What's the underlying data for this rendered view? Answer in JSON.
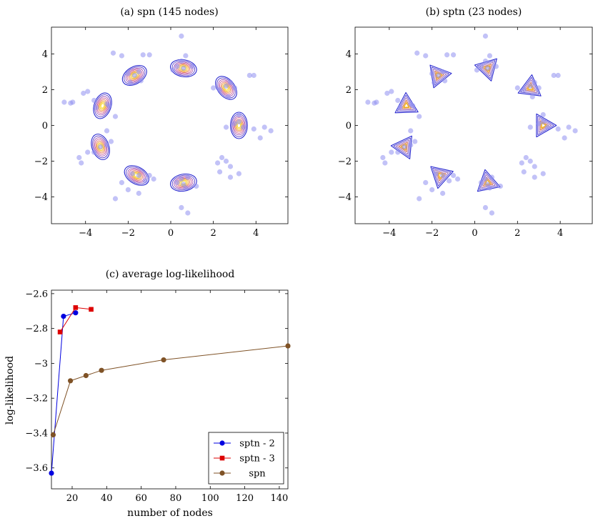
{
  "chart_data": [
    {
      "type": "scatter",
      "title": "(a) spn (145 nodes)",
      "xlabel": "",
      "ylabel": "",
      "xlim": [
        -5.6,
        5.5
      ],
      "ylim": [
        -5.5,
        5.5
      ],
      "xticks": [
        -4,
        -2,
        0,
        2,
        4
      ],
      "yticks": [
        -4,
        -2,
        0,
        2,
        4
      ],
      "xtick_labels": [
        "−4",
        "−2",
        "0",
        "2",
        "4"
      ],
      "ytick_labels": [
        "−4",
        "−2",
        "0",
        "2",
        "4"
      ],
      "grid": false,
      "overlay": "density contours (blue/purple/orange/yellow) around 8 clusters",
      "colors": {
        "points": "#8f8ff0",
        "contour_outer": "#2323d0",
        "contour_mid": "#b03090",
        "contour_inner": "#f0c020"
      },
      "points": [
        [
          -5.0,
          1.3
        ],
        [
          -4.7,
          1.25
        ],
        [
          -4.6,
          1.3
        ],
        [
          -4.1,
          1.8
        ],
        [
          -3.9,
          1.9
        ],
        [
          -3.6,
          1.4
        ],
        [
          -3.5,
          1.0
        ],
        [
          -3.0,
          1.2
        ],
        [
          -2.9,
          1.1
        ],
        [
          -2.6,
          0.5
        ],
        [
          -4.3,
          -1.8
        ],
        [
          -4.2,
          -2.1
        ],
        [
          -3.9,
          -1.5
        ],
        [
          -3.6,
          -1.5
        ],
        [
          -3.3,
          -1.2
        ],
        [
          -3.0,
          -1.1
        ],
        [
          -2.8,
          -0.9
        ],
        [
          -3.0,
          -0.3
        ],
        [
          -2.7,
          4.05
        ],
        [
          -2.3,
          3.9
        ],
        [
          -2.0,
          2.9
        ],
        [
          -1.7,
          2.8
        ],
        [
          -1.5,
          3.0
        ],
        [
          -1.3,
          3.95
        ],
        [
          -1.0,
          3.95
        ],
        [
          -1.9,
          2.4
        ],
        [
          -1.4,
          2.5
        ],
        [
          0.1,
          3.1
        ],
        [
          0.3,
          3.3
        ],
        [
          0.5,
          3.6
        ],
        [
          0.6,
          3.2
        ],
        [
          0.5,
          5.0
        ],
        [
          0.7,
          3.9
        ],
        [
          1.0,
          3.3
        ],
        [
          2.0,
          2.1
        ],
        [
          2.3,
          2.0
        ],
        [
          2.6,
          2.2
        ],
        [
          2.8,
          2.4
        ],
        [
          3.0,
          2.1
        ],
        [
          3.7,
          2.8
        ],
        [
          3.9,
          2.8
        ],
        [
          2.7,
          1.6
        ],
        [
          2.6,
          -0.1
        ],
        [
          3.0,
          0.1
        ],
        [
          3.2,
          0.2
        ],
        [
          3.4,
          -0.1
        ],
        [
          3.9,
          -0.2
        ],
        [
          4.4,
          -0.1
        ],
        [
          4.7,
          -0.3
        ],
        [
          4.2,
          -0.7
        ],
        [
          3.2,
          0.6
        ],
        [
          2.2,
          -2.1
        ],
        [
          2.4,
          -1.8
        ],
        [
          2.6,
          -2.0
        ],
        [
          2.8,
          -2.3
        ],
        [
          3.2,
          -2.7
        ],
        [
          2.3,
          -2.6
        ],
        [
          2.8,
          -2.9
        ],
        [
          0.3,
          -3.2
        ],
        [
          0.5,
          -3.0
        ],
        [
          0.6,
          -3.3
        ],
        [
          0.7,
          -3.5
        ],
        [
          0.8,
          -2.9
        ],
        [
          0.5,
          -4.6
        ],
        [
          0.8,
          -4.9
        ],
        [
          1.2,
          -3.4
        ],
        [
          -2.6,
          -4.1
        ],
        [
          -2.3,
          -3.2
        ],
        [
          -2.0,
          -3.6
        ],
        [
          -1.8,
          -2.7
        ],
        [
          -1.5,
          -2.8
        ],
        [
          -1.2,
          -3.1
        ],
        [
          -1.5,
          -3.8
        ],
        [
          -1.0,
          -2.8
        ],
        [
          -0.8,
          -3.0
        ]
      ]
    },
    {
      "type": "scatter",
      "title": "(b) sptn (23 nodes)",
      "xlabel": "",
      "ylabel": "",
      "xlim": [
        -5.6,
        5.5
      ],
      "ylim": [
        -5.5,
        5.5
      ],
      "xticks": [
        -4,
        -2,
        0,
        2,
        4
      ],
      "yticks": [
        -4,
        -2,
        0,
        2,
        4
      ],
      "xtick_labels": [
        "−4",
        "−2",
        "0",
        "2",
        "4"
      ],
      "ytick_labels": [
        "−4",
        "−2",
        "0",
        "2",
        "4"
      ],
      "grid": false,
      "overlay": "triangular density contours around 8 clusters",
      "colors": {
        "points": "#8f8ff0",
        "contour_outer": "#2323d0",
        "contour_inner": "#f0a020"
      },
      "points": [
        [
          -5.0,
          1.3
        ],
        [
          -4.7,
          1.25
        ],
        [
          -4.6,
          1.3
        ],
        [
          -4.1,
          1.8
        ],
        [
          -3.9,
          1.9
        ],
        [
          -3.6,
          1.4
        ],
        [
          -3.5,
          1.0
        ],
        [
          -3.0,
          1.2
        ],
        [
          -2.9,
          1.1
        ],
        [
          -2.6,
          0.5
        ],
        [
          -4.3,
          -1.8
        ],
        [
          -4.2,
          -2.1
        ],
        [
          -3.9,
          -1.5
        ],
        [
          -3.6,
          -1.5
        ],
        [
          -3.3,
          -1.2
        ],
        [
          -3.0,
          -1.1
        ],
        [
          -2.8,
          -0.9
        ],
        [
          -3.0,
          -0.3
        ],
        [
          -2.7,
          4.05
        ],
        [
          -2.3,
          3.9
        ],
        [
          -2.0,
          2.9
        ],
        [
          -1.7,
          2.8
        ],
        [
          -1.5,
          3.0
        ],
        [
          -1.3,
          3.95
        ],
        [
          -1.0,
          3.95
        ],
        [
          -1.9,
          2.4
        ],
        [
          -1.4,
          2.5
        ],
        [
          0.1,
          3.1
        ],
        [
          0.3,
          3.3
        ],
        [
          0.5,
          3.6
        ],
        [
          0.6,
          3.2
        ],
        [
          0.5,
          5.0
        ],
        [
          0.7,
          3.9
        ],
        [
          1.0,
          3.3
        ],
        [
          2.0,
          2.1
        ],
        [
          2.3,
          2.0
        ],
        [
          2.6,
          2.2
        ],
        [
          2.8,
          2.4
        ],
        [
          3.0,
          2.1
        ],
        [
          3.7,
          2.8
        ],
        [
          3.9,
          2.8
        ],
        [
          2.7,
          1.6
        ],
        [
          2.6,
          -0.1
        ],
        [
          3.0,
          0.1
        ],
        [
          3.2,
          0.2
        ],
        [
          3.4,
          -0.1
        ],
        [
          3.9,
          -0.2
        ],
        [
          4.4,
          -0.1
        ],
        [
          4.7,
          -0.3
        ],
        [
          4.2,
          -0.7
        ],
        [
          3.2,
          0.6
        ],
        [
          2.2,
          -2.1
        ],
        [
          2.4,
          -1.8
        ],
        [
          2.6,
          -2.0
        ],
        [
          2.8,
          -2.3
        ],
        [
          3.2,
          -2.7
        ],
        [
          2.3,
          -2.6
        ],
        [
          2.8,
          -2.9
        ],
        [
          0.3,
          -3.2
        ],
        [
          0.5,
          -3.0
        ],
        [
          0.6,
          -3.3
        ],
        [
          0.7,
          -3.5
        ],
        [
          0.8,
          -2.9
        ],
        [
          0.5,
          -4.6
        ],
        [
          0.8,
          -4.9
        ],
        [
          1.2,
          -3.4
        ],
        [
          -2.6,
          -4.1
        ],
        [
          -2.3,
          -3.2
        ],
        [
          -2.0,
          -3.6
        ],
        [
          -1.8,
          -2.7
        ],
        [
          -1.5,
          -2.8
        ],
        [
          -1.2,
          -3.1
        ],
        [
          -1.5,
          -3.8
        ],
        [
          -1.0,
          -2.8
        ],
        [
          -0.8,
          -3.0
        ]
      ]
    },
    {
      "type": "line",
      "title": "(c) average log-likelihood",
      "xlabel": "number of nodes",
      "ylabel": "log-likelihood",
      "xlim": [
        8,
        145
      ],
      "ylim": [
        -3.72,
        -2.58
      ],
      "xticks": [
        20,
        40,
        60,
        80,
        100,
        120,
        140
      ],
      "yticks": [
        -3.6,
        -3.4,
        -3.2,
        -3.0,
        -2.8,
        -2.6
      ],
      "xtick_labels": [
        "20",
        "40",
        "60",
        "80",
        "100",
        "120",
        "140"
      ],
      "ytick_labels": [
        "−3.6",
        "−3.4",
        "−3.2",
        "−3",
        "−2.8",
        "−2.6"
      ],
      "grid": false,
      "legend": "bottom-right",
      "series": [
        {
          "name": "sptn - 2",
          "color": "#0000e0",
          "marker": "circle",
          "x": [
            8,
            15,
            22
          ],
          "y": [
            -3.63,
            -2.73,
            -2.71
          ]
        },
        {
          "name": "sptn - 3",
          "color": "#dd0000",
          "marker": "square",
          "x": [
            13,
            22,
            31
          ],
          "y": [
            -2.82,
            -2.68,
            -2.69
          ]
        },
        {
          "name": "spn",
          "color": "#7f5226",
          "marker": "circle",
          "x": [
            9,
            19,
            28,
            37,
            73,
            145
          ],
          "y": [
            -3.41,
            -3.1,
            -3.07,
            -3.04,
            -2.98,
            -2.9
          ]
        }
      ]
    }
  ]
}
